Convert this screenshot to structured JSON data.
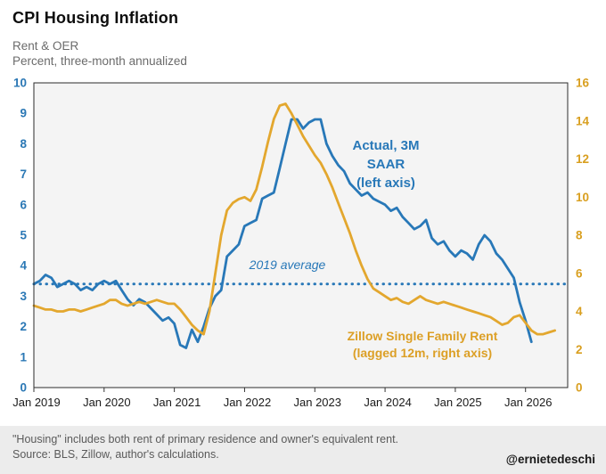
{
  "header": {
    "title": "CPI Housing Inflation",
    "subtitle1": "Rent & OER",
    "subtitle2": "Percent, three-month annualized"
  },
  "annotations": {
    "avg_label": "2019 average",
    "actual_line1": "Actual, 3M",
    "actual_line2": "SAAR",
    "actual_line3": "(left axis)",
    "zillow_line1": "Zillow Single Family Rent",
    "zillow_line2": "(lagged 12m, right axis)"
  },
  "footer": {
    "note1": "\"Housing\" includes both rent of primary residence and owner's equivalent rent.",
    "note2": "Source: BLS, Zillow, author's calculations.",
    "handle": "@ernietedeschi"
  },
  "chart_data": {
    "type": "line",
    "title": "CPI Housing Inflation",
    "subtitle": "Rent & OER — Percent, three-month annualized",
    "plot_bg": "#f4f4f4",
    "x_start": 2019,
    "x_step_months": 1,
    "x_range": [
      2019,
      2026.6
    ],
    "x_axis": {
      "ticks": [
        {
          "x": 2019,
          "label": "Jan 2019"
        },
        {
          "x": 2020,
          "label": "Jan 2020"
        },
        {
          "x": 2021,
          "label": "Jan 2021"
        },
        {
          "x": 2022,
          "label": "Jan 2022"
        },
        {
          "x": 2023,
          "label": "Jan 2023"
        },
        {
          "x": 2024,
          "label": "Jan 2024"
        },
        {
          "x": 2025,
          "label": "Jan 2025"
        },
        {
          "x": 2026,
          "label": "Jan 2026"
        }
      ]
    },
    "left_axis": {
      "range": [
        0,
        10
      ],
      "ticks": [
        0,
        1,
        2,
        3,
        4,
        5,
        6,
        7,
        8,
        9,
        10
      ],
      "color": "#2b78b5"
    },
    "right_axis": {
      "range": [
        0,
        16
      ],
      "ticks": [
        0,
        2,
        4,
        6,
        8,
        10,
        12,
        14,
        16
      ],
      "color": "#d99f1f"
    },
    "reference_line": {
      "value": 3.4,
      "axis": "left",
      "label": "2019 average",
      "color": "#2878b8"
    },
    "series": [
      {
        "name": "Actual, 3M SAAR",
        "axis": "left",
        "color": "#2878b8",
        "values": [
          3.4,
          3.5,
          3.7,
          3.6,
          3.3,
          3.4,
          3.5,
          3.4,
          3.2,
          3.3,
          3.2,
          3.4,
          3.5,
          3.4,
          3.5,
          3.2,
          2.9,
          2.7,
          2.9,
          2.8,
          2.6,
          2.4,
          2.2,
          2.3,
          2.1,
          1.4,
          1.3,
          1.9,
          1.5,
          2.0,
          2.6,
          3.0,
          3.2,
          4.3,
          4.5,
          4.7,
          5.3,
          5.4,
          5.5,
          6.2,
          6.3,
          6.4,
          7.2,
          8.0,
          8.8,
          8.8,
          8.5,
          8.7,
          8.8,
          8.8,
          8.0,
          7.6,
          7.3,
          7.1,
          6.7,
          6.5,
          6.3,
          6.4,
          6.2,
          6.1,
          6.0,
          5.8,
          5.9,
          5.6,
          5.4,
          5.2,
          5.3,
          5.5,
          4.9,
          4.7,
          4.8,
          4.5,
          4.3,
          4.5,
          4.4,
          4.2,
          4.7,
          5.0,
          4.8,
          4.4,
          4.2,
          3.9,
          3.6,
          2.8,
          2.2,
          1.5
        ]
      },
      {
        "name": "Zillow Single Family Rent (lagged 12m)",
        "axis": "right",
        "color": "#e3a72e",
        "values": [
          4.3,
          4.2,
          4.1,
          4.1,
          4.0,
          4.0,
          4.1,
          4.1,
          4.0,
          4.1,
          4.2,
          4.3,
          4.4,
          4.6,
          4.6,
          4.4,
          4.3,
          4.4,
          4.5,
          4.4,
          4.5,
          4.6,
          4.5,
          4.4,
          4.4,
          4.1,
          3.7,
          3.3,
          3.0,
          2.8,
          4.0,
          6.0,
          8.0,
          9.3,
          9.7,
          9.9,
          10.0,
          9.8,
          10.4,
          11.6,
          12.9,
          14.1,
          14.8,
          14.9,
          14.4,
          13.8,
          13.2,
          12.7,
          12.2,
          11.8,
          11.2,
          10.5,
          9.7,
          8.9,
          8.1,
          7.2,
          6.4,
          5.7,
          5.2,
          5.0,
          4.8,
          4.6,
          4.7,
          4.5,
          4.4,
          4.6,
          4.8,
          4.6,
          4.5,
          4.4,
          4.5,
          4.4,
          4.3,
          4.2,
          4.1,
          4.0,
          3.9,
          3.8,
          3.7,
          3.5,
          3.3,
          3.4,
          3.7,
          3.8,
          3.4,
          3.0,
          2.8,
          2.8,
          2.9,
          3.0
        ]
      }
    ]
  }
}
